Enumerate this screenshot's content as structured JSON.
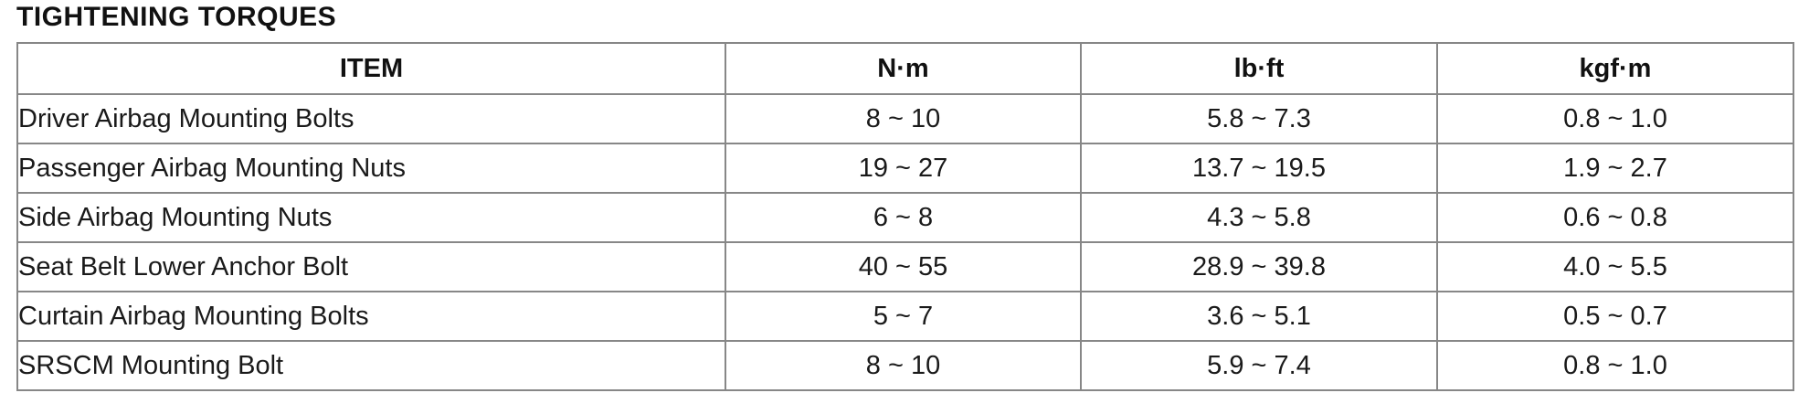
{
  "page": {
    "title": "TIGHTENING TORQUES"
  },
  "table": {
    "headers": [
      "ITEM",
      "N·m",
      "lb·ft",
      "kgf·m"
    ],
    "rows": [
      {
        "item": "Driver Airbag Mounting Bolts",
        "nm": "8 ~ 10",
        "lbft": "5.8 ~ 7.3",
        "kgfm": "0.8 ~ 1.0"
      },
      {
        "item": "Passenger Airbag Mounting Nuts",
        "nm": "19 ~ 27",
        "lbft": "13.7 ~ 19.5",
        "kgfm": "1.9 ~ 2.7"
      },
      {
        "item": "Side Airbag Mounting Nuts",
        "nm": "6 ~ 8",
        "lbft": "4.3 ~ 5.8",
        "kgfm": "0.6 ~ 0.8"
      },
      {
        "item": "Seat Belt Lower Anchor Bolt",
        "nm": "40 ~ 55",
        "lbft": "28.9 ~ 39.8",
        "kgfm": "4.0 ~ 5.5"
      },
      {
        "item": "Curtain Airbag Mounting Bolts",
        "nm": "5 ~ 7",
        "lbft": "3.6 ~ 5.1",
        "kgfm": "0.5 ~ 0.7"
      },
      {
        "item": "SRSCM Mounting Bolt",
        "nm": "8 ~ 10",
        "lbft": "5.9 ~ 7.4",
        "kgfm": "0.8 ~ 1.0"
      }
    ],
    "colors": {
      "border": "#878787",
      "text": "#1a1a1a",
      "background": "#ffffff"
    }
  }
}
